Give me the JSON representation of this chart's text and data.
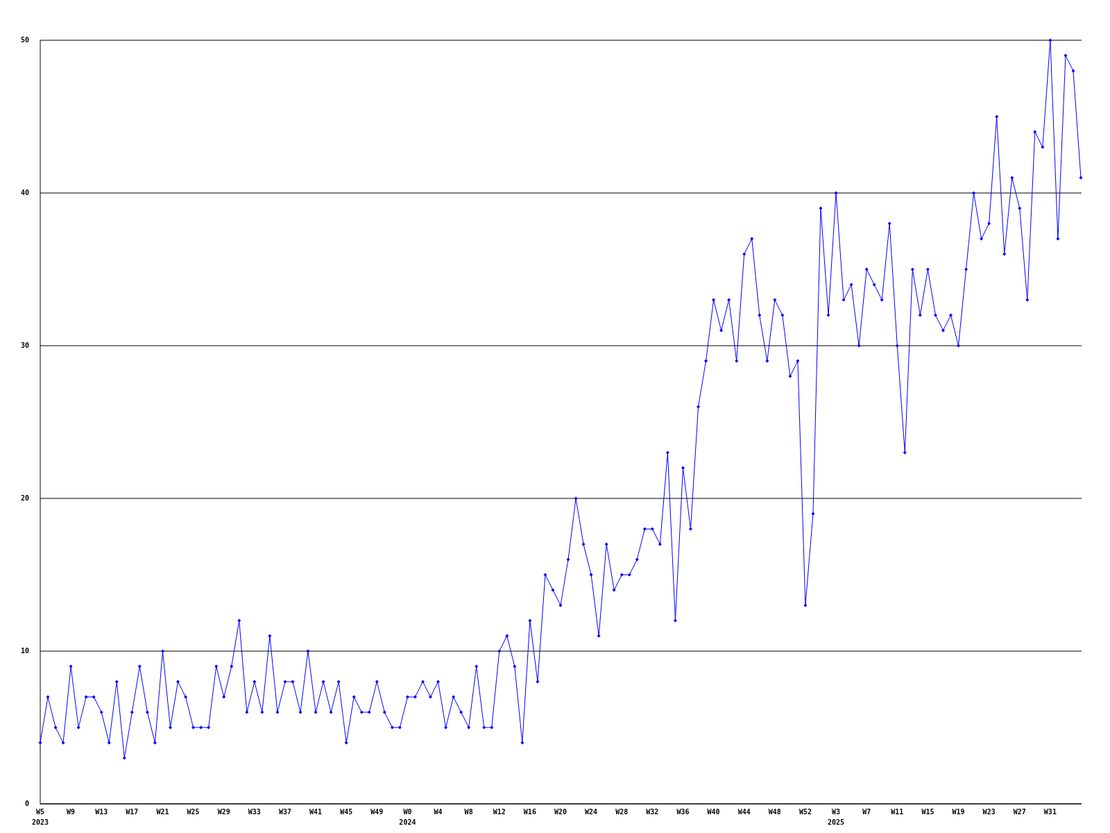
{
  "chart_data": {
    "type": "line",
    "categories": [
      "W5\n2023",
      null,
      null,
      null,
      "W9",
      null,
      null,
      null,
      "W13",
      null,
      null,
      null,
      "W17",
      null,
      null,
      null,
      "W21",
      null,
      null,
      null,
      "W25",
      null,
      null,
      null,
      "W29",
      null,
      null,
      null,
      "W33",
      null,
      null,
      null,
      "W37",
      null,
      null,
      null,
      "W41",
      null,
      null,
      null,
      "W45",
      null,
      null,
      null,
      "W49",
      null,
      null,
      null,
      "W0\n2024",
      null,
      null,
      null,
      "W4",
      null,
      null,
      null,
      "W8",
      null,
      null,
      null,
      "W12",
      null,
      null,
      null,
      "W16",
      null,
      null,
      null,
      "W20",
      null,
      null,
      null,
      "W24",
      null,
      null,
      null,
      "W28",
      null,
      null,
      null,
      "W32",
      null,
      null,
      null,
      "W36",
      null,
      null,
      null,
      "W40",
      null,
      null,
      null,
      "W44",
      null,
      null,
      null,
      "W48",
      null,
      null,
      null,
      "W52",
      null,
      null,
      null,
      "W3\n2025",
      null,
      null,
      null,
      "W7",
      null,
      null,
      null,
      "W11",
      null,
      null,
      null,
      "W15",
      null,
      null,
      null,
      "W19",
      null,
      null,
      null,
      "W23",
      null,
      null,
      null,
      "W27",
      null,
      null,
      null,
      "W31",
      null,
      null,
      null,
      null
    ],
    "series": [
      {
        "color": "#0000ff",
        "values": [
          4,
          7,
          5,
          4,
          9,
          5,
          7,
          7,
          6,
          4,
          8,
          3,
          6,
          9,
          6,
          4,
          10,
          5,
          8,
          7,
          5,
          5,
          5,
          9,
          7,
          9,
          12,
          6,
          8,
          6,
          11,
          6,
          8,
          8,
          6,
          10,
          6,
          8,
          6,
          8,
          4,
          7,
          6,
          6,
          8,
          6,
          5,
          5,
          7,
          7,
          8,
          7,
          8,
          5,
          7,
          6,
          5,
          9,
          5,
          5,
          10,
          11,
          9,
          4,
          12,
          8,
          15,
          14,
          13,
          16,
          20,
          17,
          15,
          11,
          17,
          14,
          15,
          15,
          16,
          18,
          18,
          17,
          23,
          12,
          22,
          18,
          26,
          29,
          33,
          31,
          33,
          29,
          36,
          37,
          32,
          29,
          33,
          32,
          28,
          29,
          13,
          19,
          39,
          32,
          40,
          33,
          34,
          30,
          35,
          34,
          33,
          38,
          30,
          23,
          35,
          32,
          35,
          32,
          31,
          32,
          30,
          35,
          40,
          37,
          38,
          45,
          36,
          41,
          39,
          33,
          44,
          43,
          50,
          37,
          49,
          48,
          41
        ]
      }
    ],
    "ylim": [
      0,
      50
    ],
    "yticks": [
      0,
      10,
      20,
      30,
      40,
      50
    ],
    "grid": "y",
    "marker": "diamond",
    "line_style": "solid"
  }
}
